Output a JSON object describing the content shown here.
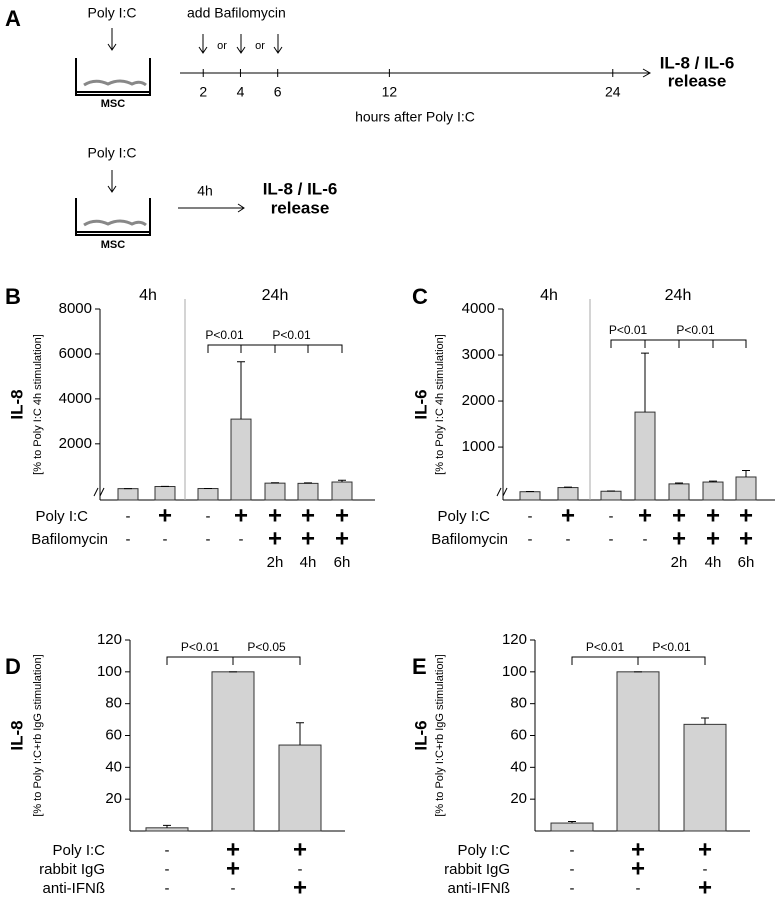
{
  "panel_a": {
    "label": "A",
    "stim_label": "Poly I:C",
    "cells_label": "MSC",
    "add_label": "add Bafilomycin",
    "or_labels": [
      "or",
      "or"
    ],
    "timeline": {
      "xlim": [
        0,
        26
      ],
      "xticks": [
        2,
        4,
        6,
        12,
        24
      ],
      "xlabel": "hours after Poly I:C"
    },
    "readout": [
      "IL-8 / IL-6",
      "release"
    ],
    "second": {
      "stim_label": "Poly I:C",
      "cells_label": "MSC",
      "duration": "4h",
      "readout": [
        "IL-8 / IL-6",
        "release"
      ]
    }
  },
  "chart_data": [
    {
      "type": "bar",
      "panel": "B",
      "ylabel": "IL-8",
      "ylabel_sub": "[% to Poly I:C 4h stimulation]",
      "groups": [
        "4h",
        "24h"
      ],
      "values": [
        5,
        100,
        10,
        3100,
        250,
        240,
        300
      ],
      "errors": [
        2,
        5,
        3,
        2550,
        20,
        20,
        80
      ],
      "ylim": [
        -500,
        8000
      ],
      "yticks": [
        2000,
        4000,
        6000,
        8000
      ],
      "axis_break": true,
      "color": "#d3d3d3",
      "significance": [
        "P<0.01",
        "P<0.01"
      ],
      "conditions": [
        {
          "label": "Poly I:C",
          "values": [
            "-",
            "+",
            "-",
            "+",
            "+",
            "+",
            "+"
          ]
        },
        {
          "label": "Bafilomycin",
          "values": [
            "-",
            "-",
            "-",
            "-",
            "+",
            "+",
            "+"
          ]
        },
        {
          "label": null,
          "values": [
            null,
            null,
            null,
            null,
            "2h",
            "4h",
            "6h"
          ]
        }
      ]
    },
    {
      "type": "bar",
      "panel": "C",
      "ylabel": "IL-6",
      "ylabel_sub": "[% to Poly I:C 4h stimulation]",
      "groups": [
        "4h",
        "24h"
      ],
      "values": [
        30,
        120,
        40,
        1760,
        200,
        240,
        350
      ],
      "errors": [
        5,
        10,
        5,
        1280,
        20,
        20,
        140
      ],
      "ylim": [
        -150,
        4000
      ],
      "yticks": [
        1000,
        2000,
        3000,
        4000
      ],
      "axis_break": true,
      "color": "#d3d3d3",
      "significance": [
        "P<0.01",
        "P<0.01"
      ],
      "conditions": [
        {
          "label": "Poly I:C",
          "values": [
            "-",
            "+",
            "-",
            "+",
            "+",
            "+",
            "+"
          ]
        },
        {
          "label": "Bafilomycin",
          "values": [
            "-",
            "-",
            "-",
            "-",
            "+",
            "+",
            "+"
          ]
        },
        {
          "label": null,
          "values": [
            null,
            null,
            null,
            null,
            "2h",
            "4h",
            "6h"
          ]
        }
      ]
    },
    {
      "type": "bar",
      "panel": "D",
      "ylabel": "IL-8",
      "ylabel_sub": "[% to Poly I:C+rb IgG stimulation]",
      "values": [
        2,
        100,
        54
      ],
      "errors": [
        1.5,
        0,
        14
      ],
      "ylim": [
        0,
        120
      ],
      "yticks": [
        20,
        40,
        60,
        80,
        100,
        120
      ],
      "axis_break": false,
      "color": "#d3d3d3",
      "significance": [
        "P<0.01",
        "P<0.05"
      ],
      "conditions": [
        {
          "label": "Poly I:C",
          "values": [
            "-",
            "+",
            "+"
          ]
        },
        {
          "label": "rabbit IgG",
          "values": [
            "-",
            "+",
            "-"
          ]
        },
        {
          "label": "anti-IFNß",
          "values": [
            "-",
            "-",
            "+"
          ]
        }
      ]
    },
    {
      "type": "bar",
      "panel": "E",
      "ylabel": "IL-6",
      "ylabel_sub": "[% to Poly I:C+rb IgG stimulation]",
      "values": [
        5,
        100,
        67
      ],
      "errors": [
        1,
        0,
        4
      ],
      "ylim": [
        0,
        120
      ],
      "yticks": [
        20,
        40,
        60,
        80,
        100,
        120
      ],
      "axis_break": false,
      "color": "#d3d3d3",
      "significance": [
        "P<0.01",
        "P<0.01"
      ],
      "conditions": [
        {
          "label": "Poly I:C",
          "values": [
            "-",
            "+",
            "+"
          ]
        },
        {
          "label": "rabbit IgG",
          "values": [
            "-",
            "+",
            "-"
          ]
        },
        {
          "label": "anti-IFNß",
          "values": [
            "-",
            "-",
            "+"
          ]
        }
      ]
    }
  ]
}
